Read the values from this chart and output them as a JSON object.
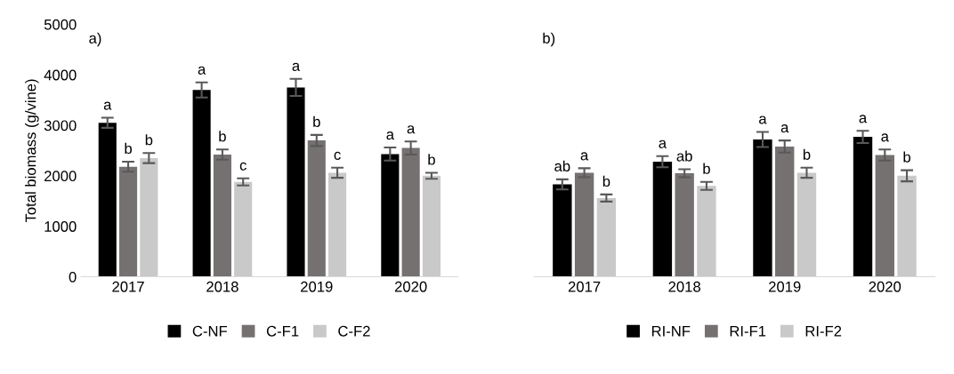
{
  "chart_data": [
    {
      "type": "bar",
      "title": "a)",
      "ylabel": "Total biomass (g/vine)",
      "categories": [
        "2017",
        "2018",
        "2019",
        "2020"
      ],
      "ylim": [
        0,
        5000
      ],
      "yticks": [
        0,
        1000,
        2000,
        3000,
        4000,
        5000
      ],
      "grid": false,
      "legend": "bottom",
      "series": [
        {
          "name": "C-NF",
          "color": "#000000",
          "values": [
            3050,
            3700,
            3750,
            2430
          ],
          "errors": [
            100,
            150,
            170,
            130
          ],
          "value_labels": [
            "a",
            "a",
            "a",
            "a"
          ]
        },
        {
          "name": "C-F1",
          "color": "#767171",
          "values": [
            2180,
            2420,
            2700,
            2550
          ],
          "errors": [
            100,
            100,
            110,
            130
          ],
          "value_labels": [
            "b",
            "b",
            "b",
            "a"
          ]
        },
        {
          "name": "C-F2",
          "color": "#c9c9c9",
          "values": [
            2350,
            1880,
            2060,
            2000
          ],
          "errors": [
            100,
            70,
            100,
            60
          ],
          "value_labels": [
            "b",
            "c",
            "c",
            "b"
          ]
        }
      ]
    },
    {
      "type": "bar",
      "title": "b)",
      "categories": [
        "2017",
        "2018",
        "2019",
        "2020"
      ],
      "ylim": [
        0,
        5000
      ],
      "yticks": [
        0,
        1000,
        2000,
        3000,
        4000,
        5000
      ],
      "tick_labels": "x",
      "grid": false,
      "legend": "bottom",
      "series": [
        {
          "name": "RI-NF",
          "color": "#000000",
          "values": [
            1830,
            2280,
            2720,
            2770
          ],
          "errors": [
            100,
            110,
            150,
            120
          ],
          "value_labels": [
            "ab",
            "a",
            "a",
            "a"
          ]
        },
        {
          "name": "RI-F1",
          "color": "#767171",
          "values": [
            2060,
            2050,
            2580,
            2410
          ],
          "errors": [
            90,
            80,
            120,
            110
          ],
          "value_labels": [
            "a",
            "ab",
            "a",
            "a"
          ]
        },
        {
          "name": "RI-F2",
          "color": "#c9c9c9",
          "values": [
            1560,
            1800,
            2060,
            2000
          ],
          "errors": [
            70,
            80,
            100,
            110
          ],
          "value_labels": [
            "b",
            "b",
            "b",
            "b"
          ]
        }
      ]
    }
  ]
}
